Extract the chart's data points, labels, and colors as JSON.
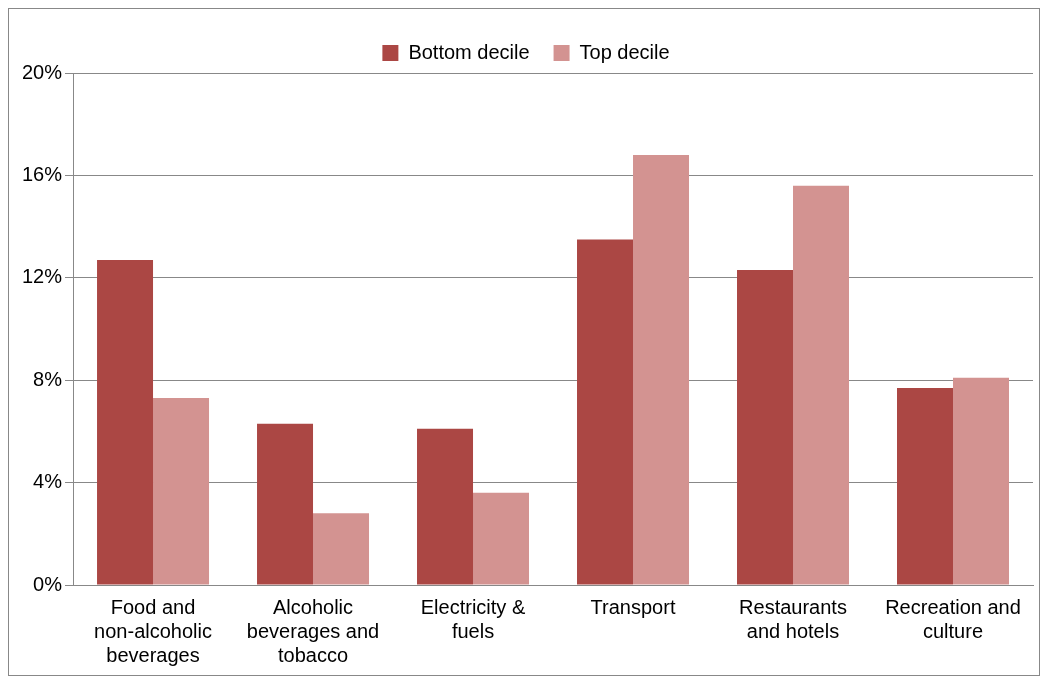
{
  "chart_data": {
    "type": "bar",
    "categories": [
      "Food and non-alcoholic beverages",
      "Alcoholic beverages and tobacco",
      "Electricity & fuels",
      "Transport",
      "Restaurants and hotels",
      "Recreation and culture"
    ],
    "series": [
      {
        "name": "Bottom decile",
        "color": "#ab4744",
        "values": [
          12.7,
          6.3,
          6.1,
          13.5,
          12.3,
          7.7
        ]
      },
      {
        "name": "Top decile",
        "color": "#d39391",
        "values": [
          7.3,
          2.8,
          3.6,
          16.8,
          15.6,
          8.1
        ]
      }
    ],
    "ylim": [
      0,
      20
    ],
    "yticks": [
      {
        "value": 0,
        "label": "0%"
      },
      {
        "value": 4,
        "label": "4%"
      },
      {
        "value": 8,
        "label": "8%"
      },
      {
        "value": 12,
        "label": "12%"
      },
      {
        "value": 16,
        "label": "16%"
      },
      {
        "value": 20,
        "label": "20%"
      }
    ],
    "grid": "y",
    "legend": "top"
  }
}
